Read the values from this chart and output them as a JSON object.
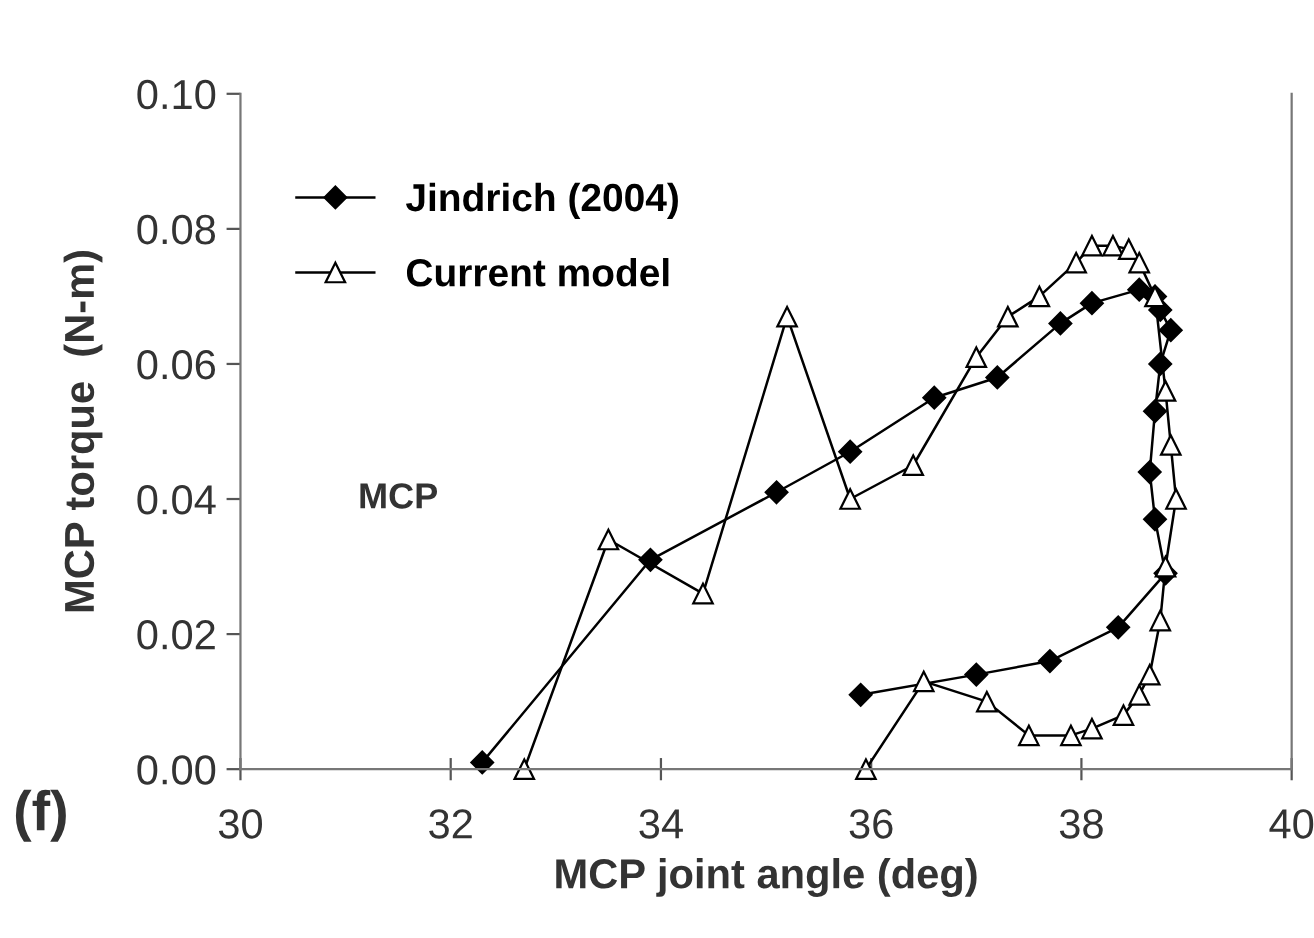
{
  "chart_data": {
    "type": "line",
    "xlabel": "MCP joint angle (deg)",
    "ylabel": "MCP torque  (N-m)",
    "xlim": [
      30,
      40
    ],
    "xticks": [
      30,
      32,
      34,
      36,
      38,
      40
    ],
    "ylim": [
      0,
      0.1
    ],
    "yticks": [
      {
        "value": 0,
        "label": "0.00"
      },
      {
        "value": 0.02,
        "label": "0.02"
      },
      {
        "value": 0.04,
        "label": "0.04"
      },
      {
        "value": 0.06,
        "label": "0.06"
      },
      {
        "value": 0.08,
        "label": "0.08"
      },
      {
        "value": 0.1,
        "label": "0.10"
      }
    ],
    "grid": false,
    "legend": "top left",
    "line_style": "solid",
    "annotations": [
      "MCP",
      "(f)"
    ],
    "series": [
      {
        "name": "Jindrich (2004)",
        "color": "#000000",
        "marker": "diamond",
        "x": [
          32.3,
          33.9,
          35.1,
          35.8,
          36.6,
          37.2,
          37.8,
          38.1,
          38.55,
          38.7,
          38.75,
          38.85,
          38.75,
          38.7,
          38.65,
          38.7,
          38.8,
          38.35,
          37.7,
          37.0,
          35.9
        ],
        "values": [
          0.001,
          0.031,
          0.041,
          0.047,
          0.055,
          0.058,
          0.066,
          0.069,
          0.071,
          0.07,
          0.068,
          0.065,
          0.06,
          0.053,
          0.044,
          0.037,
          0.029,
          0.021,
          0.016,
          0.014,
          0.011
        ]
      },
      {
        "name": "Current model",
        "color": "#000000",
        "marker": "triangle",
        "x": [
          32.7,
          33.5,
          34.4,
          35.2,
          35.8,
          36.4,
          37.0,
          37.3,
          37.6,
          37.95,
          38.1,
          38.3,
          38.45,
          38.55,
          38.7,
          38.8,
          38.85,
          38.9,
          38.8,
          38.75,
          38.65,
          38.55,
          38.4,
          38.1,
          37.9,
          37.5,
          37.1,
          36.5,
          35.95
        ],
        "values": [
          0.0,
          0.034,
          0.026,
          0.067,
          0.04,
          0.045,
          0.061,
          0.067,
          0.07,
          0.075,
          0.0775,
          0.0775,
          0.077,
          0.075,
          0.07,
          0.056,
          0.048,
          0.04,
          0.03,
          0.022,
          0.014,
          0.011,
          0.008,
          0.006,
          0.005,
          0.005,
          0.01,
          0.013,
          0.0
        ]
      }
    ]
  }
}
